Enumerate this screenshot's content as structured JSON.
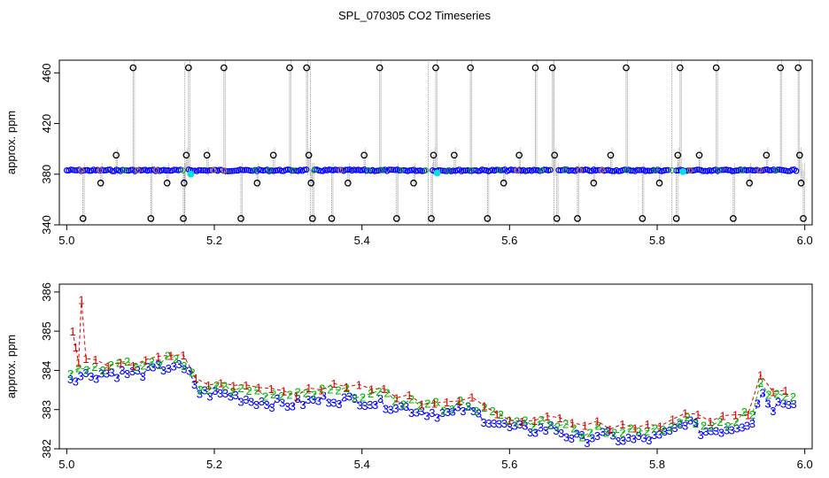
{
  "figure_title": "SPL_070305  CO2 Timeseries",
  "colors": {
    "circle_black": "#000000",
    "drop_line": "#8c8c8c",
    "series1": "#e00000",
    "series2": "#00b400",
    "series3": "#0000ff",
    "cyan": "#00e0e0"
  },
  "chart_data": [
    {
      "type": "scatter",
      "title": "",
      "xlabel": "",
      "ylabel": "approx. ppm",
      "xlim": [
        4.99,
        6.01
      ],
      "ylim": [
        340,
        470
      ],
      "xticks": [
        "5.0",
        "5.2",
        "5.4",
        "5.6",
        "5.8",
        "6.0"
      ],
      "yticks": [
        "340",
        "380",
        "420",
        "460"
      ],
      "grid": false,
      "baseline_value": 383,
      "baseline_x_start": 5.0,
      "baseline_x_end": 5.99,
      "baseline_gaps": [
        5.16,
        5.33,
        5.49,
        5.66,
        5.82
      ],
      "spike_points": [
        {
          "x": 5.09,
          "y": 464
        },
        {
          "x": 5.165,
          "y": 464
        },
        {
          "x": 5.213,
          "y": 464
        },
        {
          "x": 5.302,
          "y": 464
        },
        {
          "x": 5.325,
          "y": 464
        },
        {
          "x": 5.424,
          "y": 464
        },
        {
          "x": 5.5,
          "y": 464
        },
        {
          "x": 5.547,
          "y": 464
        },
        {
          "x": 5.635,
          "y": 464
        },
        {
          "x": 5.658,
          "y": 464
        },
        {
          "x": 5.758,
          "y": 464
        },
        {
          "x": 5.831,
          "y": 464
        },
        {
          "x": 5.88,
          "y": 464
        },
        {
          "x": 5.967,
          "y": 464
        },
        {
          "x": 5.991,
          "y": 464
        },
        {
          "x": 5.067,
          "y": 395
        },
        {
          "x": 5.162,
          "y": 395
        },
        {
          "x": 5.19,
          "y": 395
        },
        {
          "x": 5.28,
          "y": 395
        },
        {
          "x": 5.328,
          "y": 395
        },
        {
          "x": 5.403,
          "y": 395
        },
        {
          "x": 5.497,
          "y": 395
        },
        {
          "x": 5.525,
          "y": 395
        },
        {
          "x": 5.613,
          "y": 395
        },
        {
          "x": 5.661,
          "y": 395
        },
        {
          "x": 5.737,
          "y": 395
        },
        {
          "x": 5.828,
          "y": 395
        },
        {
          "x": 5.857,
          "y": 395
        },
        {
          "x": 5.948,
          "y": 395
        },
        {
          "x": 5.993,
          "y": 395
        },
        {
          "x": 5.046,
          "y": 373
        },
        {
          "x": 5.136,
          "y": 373
        },
        {
          "x": 5.159,
          "y": 373
        },
        {
          "x": 5.258,
          "y": 373
        },
        {
          "x": 5.331,
          "y": 373
        },
        {
          "x": 5.381,
          "y": 373
        },
        {
          "x": 5.47,
          "y": 373
        },
        {
          "x": 5.592,
          "y": 373
        },
        {
          "x": 5.714,
          "y": 373
        },
        {
          "x": 5.803,
          "y": 373
        },
        {
          "x": 5.925,
          "y": 373
        },
        {
          "x": 5.995,
          "y": 373
        },
        {
          "x": 5.022,
          "y": 345
        },
        {
          "x": 5.114,
          "y": 345
        },
        {
          "x": 5.158,
          "y": 345
        },
        {
          "x": 5.236,
          "y": 345
        },
        {
          "x": 5.333,
          "y": 345
        },
        {
          "x": 5.359,
          "y": 345
        },
        {
          "x": 5.447,
          "y": 345
        },
        {
          "x": 5.494,
          "y": 345
        },
        {
          "x": 5.57,
          "y": 345
        },
        {
          "x": 5.664,
          "y": 345
        },
        {
          "x": 5.692,
          "y": 345
        },
        {
          "x": 5.78,
          "y": 345
        },
        {
          "x": 5.826,
          "y": 345
        },
        {
          "x": 5.903,
          "y": 345
        },
        {
          "x": 5.998,
          "y": 345
        }
      ],
      "cyan_points": [
        {
          "x": 5.168,
          "y": 380
        },
        {
          "x": 5.502,
          "y": 381
        },
        {
          "x": 5.835,
          "y": 382
        }
      ]
    },
    {
      "type": "line",
      "title": "",
      "xlabel": "",
      "ylabel": "approx. ppm",
      "xlim": [
        4.99,
        6.01
      ],
      "ylim": [
        382,
        386.2
      ],
      "xticks": [
        "5.0",
        "5.2",
        "5.4",
        "5.6",
        "5.8",
        "6.0"
      ],
      "yticks": [
        "382",
        "383",
        "384",
        "385",
        "386"
      ],
      "grid": false,
      "series_markers": [
        "1",
        "2",
        "3"
      ],
      "trend": [
        {
          "x": 5.005,
          "y": 383.9
        },
        {
          "x": 5.05,
          "y": 384.0
        },
        {
          "x": 5.1,
          "y": 384.0
        },
        {
          "x": 5.145,
          "y": 384.2
        },
        {
          "x": 5.165,
          "y": 384.0
        },
        {
          "x": 5.18,
          "y": 383.5
        },
        {
          "x": 5.22,
          "y": 383.45
        },
        {
          "x": 5.25,
          "y": 383.3
        },
        {
          "x": 5.3,
          "y": 383.2
        },
        {
          "x": 5.32,
          "y": 383.25
        },
        {
          "x": 5.35,
          "y": 383.35
        },
        {
          "x": 5.4,
          "y": 383.3
        },
        {
          "x": 5.45,
          "y": 383.15
        },
        {
          "x": 5.49,
          "y": 383.0
        },
        {
          "x": 5.52,
          "y": 382.95
        },
        {
          "x": 5.54,
          "y": 383.1
        },
        {
          "x": 5.56,
          "y": 382.9
        },
        {
          "x": 5.6,
          "y": 382.6
        },
        {
          "x": 5.63,
          "y": 382.55
        },
        {
          "x": 5.66,
          "y": 382.6
        },
        {
          "x": 5.68,
          "y": 382.4
        },
        {
          "x": 5.7,
          "y": 382.3
        },
        {
          "x": 5.72,
          "y": 382.45
        },
        {
          "x": 5.74,
          "y": 382.35
        },
        {
          "x": 5.76,
          "y": 382.3
        },
        {
          "x": 5.8,
          "y": 382.35
        },
        {
          "x": 5.82,
          "y": 382.5
        },
        {
          "x": 5.84,
          "y": 382.8
        },
        {
          "x": 5.86,
          "y": 382.5
        },
        {
          "x": 5.9,
          "y": 382.6
        },
        {
          "x": 5.93,
          "y": 382.8
        },
        {
          "x": 5.94,
          "y": 383.6
        },
        {
          "x": 5.955,
          "y": 383.1
        },
        {
          "x": 5.97,
          "y": 383.3
        },
        {
          "x": 5.99,
          "y": 383.3
        }
      ],
      "offsets": {
        "series1": 0.22,
        "series2": 0.12,
        "series3": -0.06
      },
      "series1_spike": [
        {
          "x": 5.008,
          "y": 385.0
        },
        {
          "x": 5.012,
          "y": 384.6
        },
        {
          "x": 5.016,
          "y": 384.2
        },
        {
          "x": 5.02,
          "y": 385.8
        },
        {
          "x": 5.026,
          "y": 384.3
        }
      ]
    }
  ]
}
